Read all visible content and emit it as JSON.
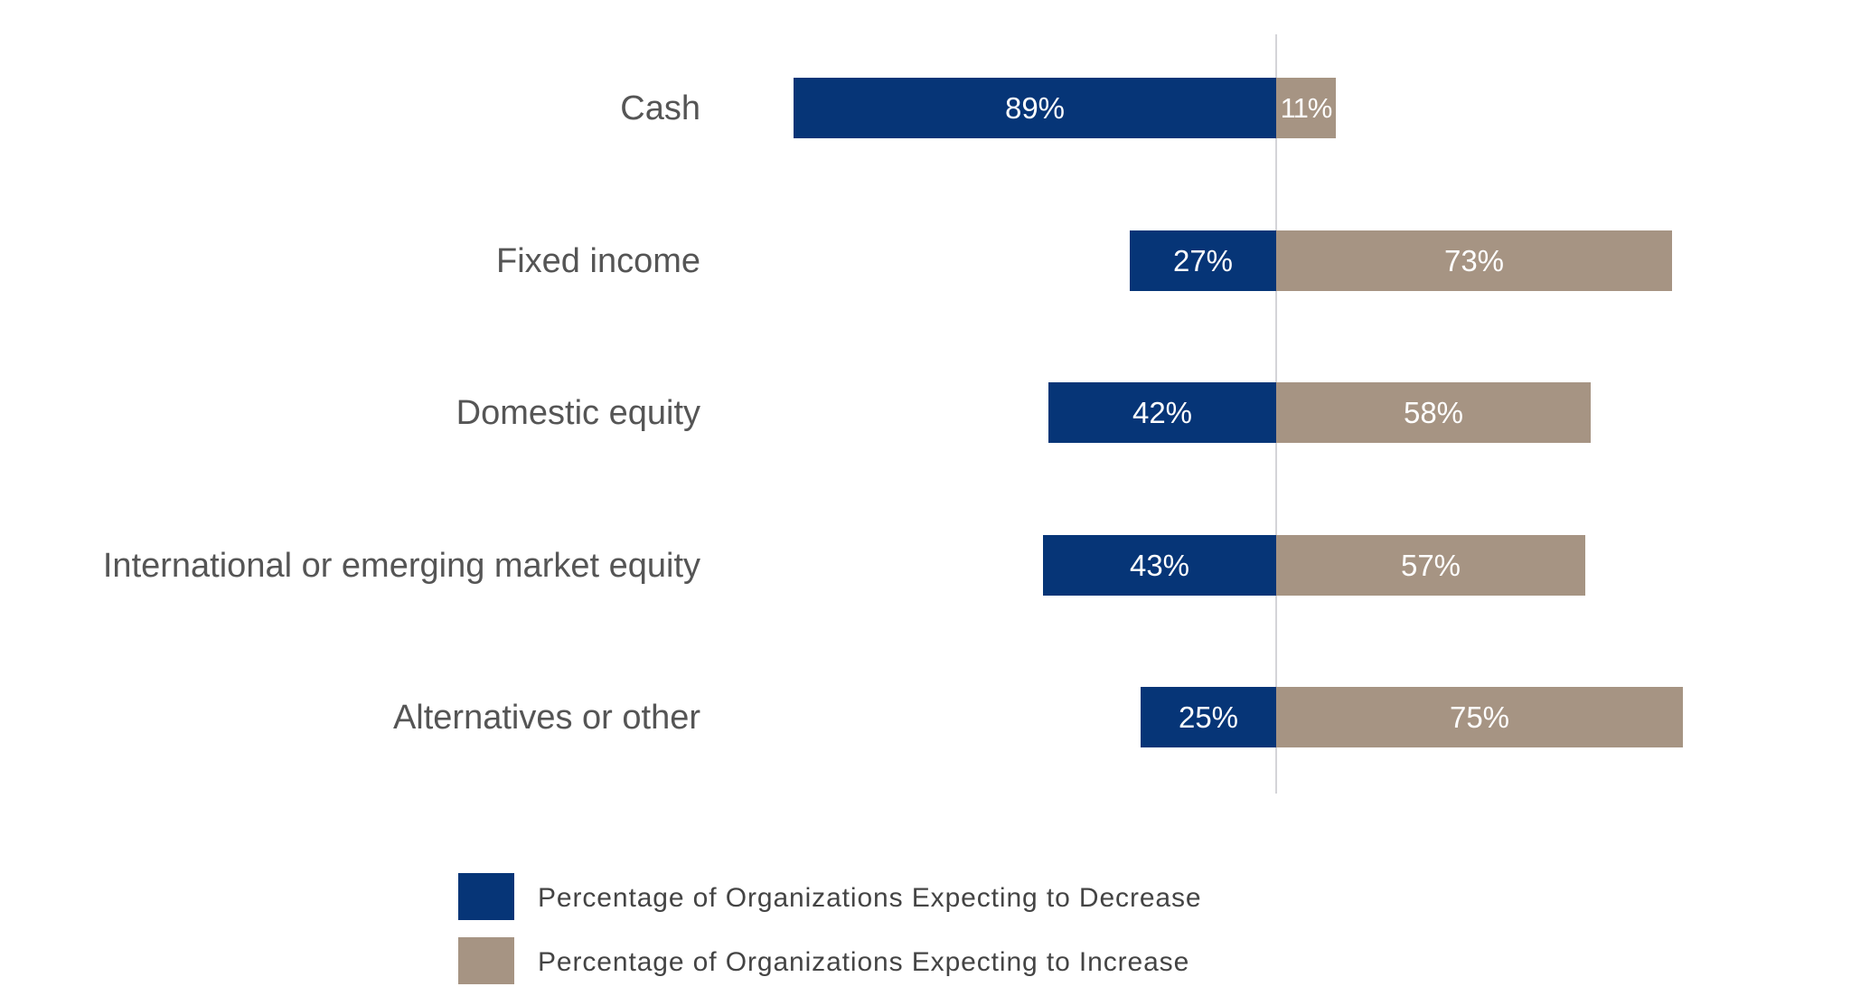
{
  "chart_data": {
    "type": "bar",
    "orientation": "horizontal",
    "stacked": "diverging",
    "title": "",
    "xlabel": "",
    "ylabel": "",
    "categories": [
      "Cash",
      "Fixed income",
      "Domestic equity",
      "International or emerging market equity",
      "Alternatives or other"
    ],
    "series": [
      {
        "name": "Percentage of Organizations Expecting to Decrease",
        "color": "#063577",
        "values": [
          89,
          27,
          42,
          43,
          25
        ],
        "labels": [
          "89%",
          "27%",
          "42%",
          "43%",
          "25%"
        ]
      },
      {
        "name": "Percentage of Organizations Expecting to Increase",
        "color": "#a69483",
        "values": [
          11,
          73,
          58,
          57,
          75
        ],
        "labels": [
          "11%",
          "73%",
          "58%",
          "57%",
          "75%"
        ]
      }
    ],
    "grid": false,
    "center_line": true,
    "legend_position": "bottom",
    "xlim": [
      -100,
      100
    ]
  },
  "legend": {
    "items": [
      {
        "label": "Percentage of Organizations Expecting to Decrease",
        "color": "#063577"
      },
      {
        "label": "Percentage of Organizations Expecting to Increase",
        "color": "#a69483"
      }
    ]
  },
  "colors": {
    "decrease": "#063577",
    "increase": "#a69483",
    "axis_line": "#d4d4d8",
    "label_text": "#555555"
  }
}
